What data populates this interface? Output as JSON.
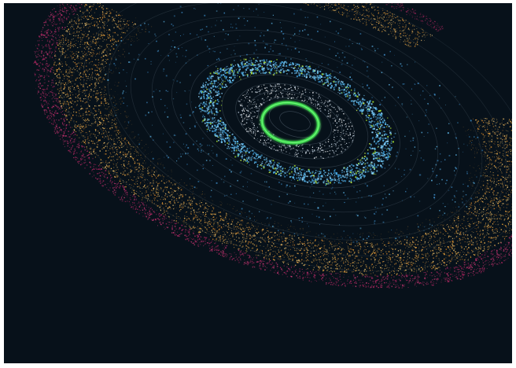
{
  "image": {
    "subject": "orbital-ring-visualization",
    "background": "#07111a",
    "frame_color": "#ffffff"
  },
  "palette": {
    "orbit_line": "#5a6a78",
    "inner_ring": "#39d14a",
    "inner_ring_glow": "#7dff86",
    "inner_scatter": "#d8e3ee",
    "mid_ring_blue": "#4fb0e6",
    "mid_ring_green": "#a6e22e",
    "sparse_blue": "#3f8fcc",
    "outer_gold": "#f0a63a",
    "outer_gold_light": "#ffd27a",
    "outer_magenta": "#c02a6a"
  },
  "layers": [
    "background",
    "orbit-guides",
    "outer-magenta-band",
    "outer-gold-band",
    "sparse-blue-field",
    "mid-blue-ring",
    "inner-white-scatter",
    "inner-green-ring"
  ]
}
